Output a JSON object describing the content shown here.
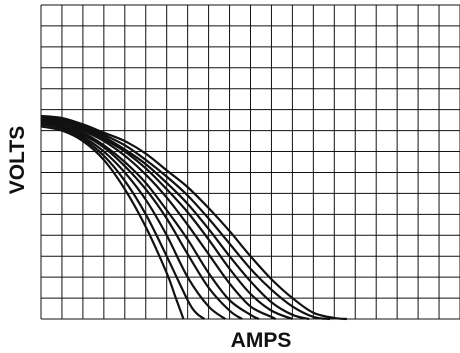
{
  "chart_data": {
    "type": "line",
    "title": "",
    "xlabel": "AMPS",
    "ylabel": "VOLTS",
    "xlim": [
      0,
      20
    ],
    "ylim": [
      0,
      15
    ],
    "grid": true,
    "grid_divisions": {
      "x": 20,
      "y": 15
    },
    "legend": "none",
    "line_color": "#111111",
    "grid_color": "#111111",
    "series": [
      {
        "x": [
          0,
          1,
          2,
          3,
          4,
          5,
          6,
          6.4,
          6.8
        ],
        "y": [
          9.2,
          9.0,
          8.5,
          7.6,
          6.2,
          4.4,
          2.2,
          1.1,
          0
        ]
      },
      {
        "x": [
          0,
          1,
          2,
          3,
          4,
          5,
          6,
          7,
          7.4,
          7.8
        ],
        "y": [
          9.3,
          9.1,
          8.6,
          7.8,
          6.6,
          5.0,
          3.0,
          0.9,
          0.3,
          0
        ]
      },
      {
        "x": [
          0,
          1,
          2,
          3,
          4,
          5,
          6,
          7,
          8,
          8.8
        ],
        "y": [
          9.4,
          9.2,
          8.7,
          8.0,
          7.0,
          5.7,
          4.0,
          2.0,
          0.6,
          0
        ]
      },
      {
        "x": [
          0,
          1,
          2,
          3,
          4,
          5,
          6,
          7,
          8,
          9,
          9.6
        ],
        "y": [
          9.4,
          9.2,
          8.8,
          8.2,
          7.3,
          6.2,
          4.8,
          3.1,
          1.5,
          0.4,
          0
        ]
      },
      {
        "x": [
          0,
          1,
          2,
          3,
          4,
          5,
          6,
          7,
          8,
          9,
          10,
          10.4
        ],
        "y": [
          9.5,
          9.3,
          8.9,
          8.3,
          7.5,
          6.5,
          5.2,
          3.8,
          2.2,
          0.9,
          0.2,
          0
        ]
      },
      {
        "x": [
          0,
          1,
          2,
          3,
          4,
          5,
          6,
          7,
          8,
          9,
          10,
          11,
          11.2
        ],
        "y": [
          9.5,
          9.4,
          9.0,
          8.5,
          7.8,
          6.9,
          5.8,
          4.5,
          3.1,
          1.7,
          0.6,
          0.1,
          0
        ]
      },
      {
        "x": [
          0,
          1,
          2,
          3,
          4,
          5,
          6,
          7,
          8,
          9,
          10,
          11,
          12
        ],
        "y": [
          9.6,
          9.4,
          9.1,
          8.6,
          8.0,
          7.2,
          6.2,
          5.1,
          3.8,
          2.4,
          1.2,
          0.4,
          0
        ]
      },
      {
        "x": [
          0,
          1,
          2,
          3,
          4,
          5,
          6,
          7,
          8,
          9,
          10,
          11,
          12,
          12.8
        ],
        "y": [
          9.6,
          9.5,
          9.2,
          8.7,
          8.1,
          7.4,
          6.5,
          5.5,
          4.3,
          3.0,
          1.8,
          0.8,
          0.2,
          0
        ]
      },
      {
        "x": [
          0,
          1,
          2,
          3,
          4,
          5,
          6,
          7,
          8,
          9,
          10,
          11,
          12,
          13,
          13.8
        ],
        "y": [
          9.7,
          9.5,
          9.2,
          8.8,
          8.3,
          7.6,
          6.8,
          5.9,
          4.8,
          3.6,
          2.4,
          1.4,
          0.6,
          0.1,
          0
        ]
      },
      {
        "x": [
          0,
          1,
          2,
          3,
          4,
          5,
          6,
          7,
          8,
          9,
          10,
          11,
          12,
          13,
          14,
          14.6
        ],
        "y": [
          9.7,
          9.6,
          9.3,
          8.9,
          8.5,
          7.9,
          7.1,
          6.3,
          5.3,
          4.2,
          3.0,
          1.9,
          1.0,
          0.3,
          0.05,
          0
        ]
      }
    ]
  }
}
